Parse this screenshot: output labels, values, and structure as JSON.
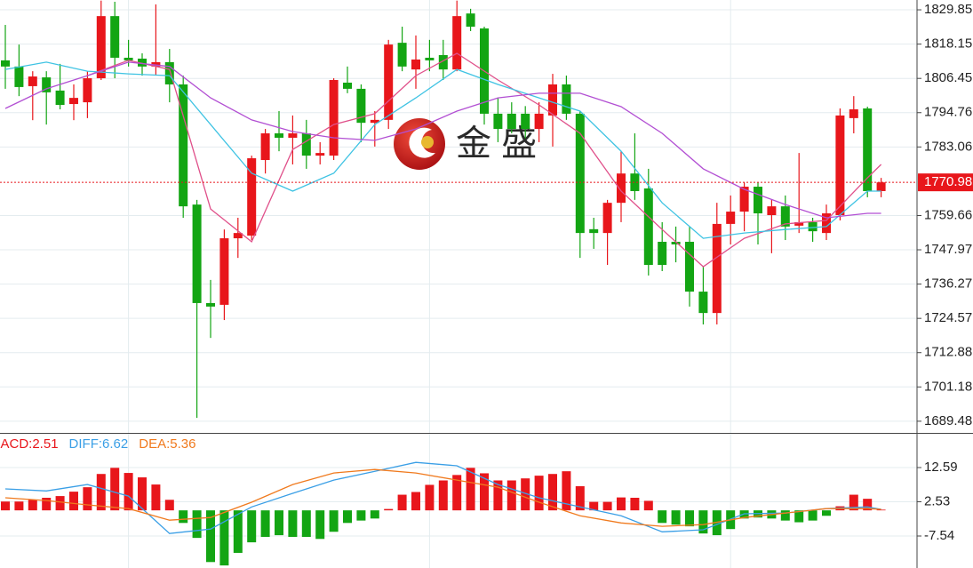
{
  "chart_data": [
    {
      "type": "candlestick",
      "open": [
        1812.6,
        1810.5,
        1803.8,
        1806.8,
        1802.3,
        1797.7,
        1798.3,
        1806.5,
        1827.7,
        1813.5,
        1813.2,
        1810.5,
        1812.0,
        1804.4,
        1763.4,
        1729.8,
        1729.2,
        1751.9,
        1752.8,
        1778.6,
        1787.7,
        1786.2,
        1787.7,
        1780.1,
        1780.1,
        1805.0,
        1802.9,
        1791.3,
        1792.3,
        1818.6,
        1809.5,
        1813.5,
        1814.4,
        1809.5,
        1828.6,
        1823.5,
        1794.4,
        1794.4,
        1794.4,
        1789.2,
        1793.8,
        1804.4,
        1794.4,
        1755.0,
        1753.7,
        1764.0,
        1774.0,
        1768.9,
        1750.7,
        1750.7,
        1750.7,
        1733.7,
        1726.4,
        1756.8,
        1761.0,
        1769.5,
        1759.8,
        1762.8,
        1756.2,
        1757.4,
        1753.7,
        1759.8,
        1792.9,
        1796.2,
        1768.0
      ],
      "high": [
        1824.7,
        1818.0,
        1808.9,
        1808.9,
        1811.4,
        1804.4,
        1808.9,
        1833.0,
        1832.6,
        1819.6,
        1815.0,
        1831.7,
        1816.5,
        1807.4,
        1765.0,
        1737.7,
        1754.9,
        1758.9,
        1780.1,
        1789.2,
        1795.3,
        1793.8,
        1792.3,
        1784.7,
        1806.5,
        1810.5,
        1804.4,
        1795.3,
        1819.6,
        1824.1,
        1821.1,
        1819.6,
        1819.6,
        1833.0,
        1830.2,
        1824.1,
        1799.8,
        1798.3,
        1797.0,
        1798.3,
        1808.0,
        1807.4,
        1795.3,
        1758.9,
        1765.0,
        1781.6,
        1787.7,
        1775.6,
        1757.4,
        1755.9,
        1755.9,
        1742.2,
        1764.0,
        1766.5,
        1771.0,
        1771.0,
        1765.0,
        1766.5,
        1781.0,
        1758.9,
        1763.4,
        1796.2,
        1800.4,
        1796.8,
        1772.5
      ],
      "low": [
        1802.9,
        1800.4,
        1792.2,
        1790.7,
        1795.9,
        1792.2,
        1792.9,
        1805.9,
        1806.5,
        1810.5,
        1807.4,
        1807.4,
        1798.3,
        1758.9,
        1690.6,
        1717.9,
        1724.0,
        1745.2,
        1751.3,
        1774.0,
        1781.6,
        1777.1,
        1775.6,
        1777.1,
        1778.6,
        1801.4,
        1784.7,
        1783.2,
        1789.2,
        1808.9,
        1802.9,
        1808.9,
        1805.9,
        1808.9,
        1822.6,
        1790.7,
        1784.7,
        1787.7,
        1786.0,
        1784.7,
        1783.2,
        1792.3,
        1745.2,
        1748.3,
        1742.8,
        1757.4,
        1765.0,
        1739.2,
        1740.7,
        1743.7,
        1728.6,
        1722.5,
        1722.5,
        1749.8,
        1754.3,
        1749.8,
        1746.8,
        1751.3,
        1753.7,
        1750.7,
        1751.3,
        1758.0,
        1787.7,
        1765.9,
        1765.9
      ],
      "close": [
        1810.5,
        1803.5,
        1807.1,
        1801.7,
        1797.4,
        1799.8,
        1806.5,
        1827.7,
        1813.5,
        1812.6,
        1810.5,
        1812.0,
        1804.4,
        1762.8,
        1729.8,
        1728.6,
        1751.9,
        1753.7,
        1779.2,
        1787.7,
        1786.2,
        1787.7,
        1780.1,
        1781.0,
        1805.9,
        1802.9,
        1791.3,
        1792.3,
        1818.0,
        1810.5,
        1812.9,
        1812.6,
        1809.5,
        1827.7,
        1824.1,
        1794.4,
        1789.2,
        1789.2,
        1789.2,
        1794.4,
        1804.4,
        1794.4,
        1753.7,
        1753.7,
        1764.0,
        1774.0,
        1768.0,
        1742.8,
        1742.8,
        1749.8,
        1733.7,
        1726.4,
        1756.8,
        1761.0,
        1769.5,
        1760.4,
        1762.8,
        1755.9,
        1757.4,
        1754.3,
        1760.4,
        1793.8,
        1795.9,
        1768.0,
        1770.98
      ],
      "up_color": "#e8161b",
      "down_color": "#13a513",
      "series": [
        {
          "color": "#e0508a",
          "x": [
            6,
            9,
            12,
            15,
            18,
            21,
            24,
            27,
            30,
            33,
            36,
            39,
            42,
            45,
            48,
            51,
            54,
            57,
            60,
            63,
            64
          ],
          "values": [
            1807.4,
            1812.6,
            1809.5,
            1761.9,
            1750.7,
            1782.2,
            1790.7,
            1794.4,
            1807.4,
            1815.0,
            1805.9,
            1797.4,
            1787.7,
            1768.0,
            1754.9,
            1742.2,
            1751.9,
            1756.8,
            1758.0,
            1772.5,
            1777.1
          ]
        },
        {
          "color": "#3fc3e3",
          "x": [
            0,
            3,
            6,
            9,
            12,
            15,
            18,
            21,
            24,
            27,
            30,
            33,
            36,
            39,
            42,
            45,
            48,
            51,
            54,
            57,
            60,
            63,
            64
          ],
          "values": [
            1809.5,
            1812.0,
            1808.9,
            1808.0,
            1807.4,
            1790.7,
            1774.1,
            1768.0,
            1774.1,
            1790.7,
            1799.8,
            1809.5,
            1804.4,
            1799.8,
            1795.3,
            1781.6,
            1764.0,
            1751.9,
            1753.7,
            1754.9,
            1755.9,
            1768.0,
            1768.0
          ]
        },
        {
          "color": "#b24fd3",
          "x": [
            0,
            3,
            6,
            9,
            12,
            15,
            18,
            21,
            24,
            27,
            30,
            33,
            36,
            39,
            42,
            45,
            48,
            51,
            54,
            57,
            60,
            63,
            64
          ],
          "values": [
            1796.2,
            1802.9,
            1807.4,
            1812.0,
            1810.5,
            1799.8,
            1792.3,
            1788.3,
            1786.2,
            1785.3,
            1789.2,
            1795.3,
            1799.8,
            1801.4,
            1801.4,
            1796.8,
            1787.7,
            1775.6,
            1768.6,
            1763.4,
            1758.9,
            1760.4,
            1760.4
          ]
        }
      ],
      "ylim": [
        1685.5,
        1833.2
      ],
      "yticks": [
        1829.85,
        1818.15,
        1806.45,
        1794.76,
        1783.06,
        1759.66,
        1747.97,
        1736.27,
        1724.57,
        1712.88,
        1701.18,
        1689.48
      ],
      "xgrid": [
        9,
        31,
        53
      ],
      "last_price": 1770.98,
      "watermark": "金 盛"
    },
    {
      "type": "macd",
      "readouts": [
        {
          "label": "MACD:",
          "value": 2.51,
          "color": "#e8161b"
        },
        {
          "label": "DIFF:",
          "value": 6.62,
          "color": "#3a9fe6"
        },
        {
          "label": "DEA:",
          "value": 5.36,
          "color": "#f07a1e"
        }
      ],
      "histogram": [
        2.6,
        2.6,
        3.1,
        3.7,
        4.2,
        5.5,
        6.8,
        10.7,
        12.5,
        11.0,
        9.7,
        7.6,
        3.1,
        -3.7,
        -8.1,
        -15.2,
        -16.2,
        -12.5,
        -9.4,
        -7.8,
        -7.3,
        -7.8,
        -7.8,
        -8.4,
        -6.3,
        -3.7,
        -3.0,
        -2.4,
        0.4,
        4.6,
        5.4,
        7.5,
        8.8,
        10.4,
        12.5,
        10.9,
        8.8,
        8.8,
        9.4,
        10.2,
        10.7,
        11.5,
        7.1,
        2.5,
        2.5,
        3.8,
        3.7,
        2.8,
        -3.7,
        -4.2,
        -4.7,
        -6.8,
        -7.3,
        -5.5,
        -2.4,
        -2.1,
        -2.4,
        -3.0,
        -3.5,
        -3.0,
        -1.6,
        1.2,
        4.6,
        3.4,
        0.2
      ],
      "up_color": "#e8161b",
      "down_color": "#13a513",
      "series": [
        {
          "color": "#3a9fe6",
          "x": [
            0,
            3,
            6,
            9,
            12,
            15,
            18,
            21,
            24,
            27,
            30,
            33,
            36,
            39,
            42,
            45,
            48,
            51,
            54,
            57,
            60,
            63,
            64
          ],
          "values": [
            6.3,
            5.7,
            7.6,
            4.2,
            -6.8,
            -5.5,
            1.0,
            5.0,
            8.9,
            11.5,
            14.1,
            13.1,
            7.6,
            3.7,
            1.0,
            -1.6,
            -6.3,
            -5.7,
            -1.0,
            -0.8,
            0.5,
            1.0,
            0.3
          ]
        },
        {
          "color": "#f07a1e",
          "x": [
            0,
            3,
            6,
            9,
            12,
            15,
            18,
            21,
            24,
            27,
            30,
            33,
            36,
            39,
            42,
            45,
            48,
            51,
            54,
            57,
            60,
            63,
            64
          ],
          "values": [
            3.7,
            2.9,
            1.6,
            0.5,
            -2.9,
            -2.1,
            2.4,
            7.6,
            11.0,
            12.0,
            11.0,
            8.9,
            6.8,
            2.4,
            -1.6,
            -3.7,
            -4.7,
            -4.2,
            -2.1,
            -0.8,
            0.5,
            0.5,
            0.3
          ]
        }
      ],
      "ylim": [
        -16.95,
        22.78
      ],
      "yticks": [
        12.59,
        2.53,
        -7.54
      ]
    }
  ]
}
